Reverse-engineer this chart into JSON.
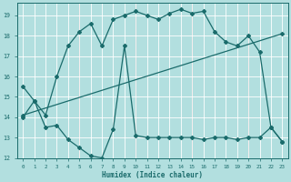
{
  "xlabel": "Humidex (Indice chaleur)",
  "bg_color": "#b2dfdf",
  "grid_color": "#c8e8e8",
  "grid_major_color": "#d4a0a0",
  "line_color": "#1a6b6b",
  "xlim": [
    -0.5,
    23.5
  ],
  "ylim": [
    12,
    19.6
  ],
  "yticks": [
    12,
    13,
    14,
    15,
    16,
    17,
    18,
    19
  ],
  "xticks": [
    0,
    1,
    2,
    3,
    4,
    5,
    6,
    7,
    8,
    9,
    10,
    11,
    12,
    13,
    14,
    15,
    16,
    17,
    18,
    19,
    20,
    21,
    22,
    23
  ],
  "line1_x": [
    0,
    1,
    2,
    3,
    4,
    5,
    6,
    7,
    8,
    9,
    10,
    11,
    12,
    13,
    14,
    15,
    16,
    17,
    18,
    19,
    20,
    21,
    22,
    23
  ],
  "line1_y": [
    15.5,
    14.8,
    14.1,
    16.0,
    17.5,
    18.2,
    18.6,
    17.5,
    18.8,
    19.0,
    19.2,
    19.0,
    18.8,
    19.1,
    19.3,
    19.1,
    19.2,
    18.2,
    17.7,
    17.5,
    18.0,
    17.2,
    13.5,
    12.8
  ],
  "line2_x": [
    0,
    1,
    2,
    3,
    4,
    5,
    6,
    7,
    8,
    9,
    10,
    11,
    12,
    13,
    14,
    15,
    16,
    17,
    18,
    19,
    20,
    21,
    22,
    23
  ],
  "line2_y": [
    14.0,
    14.8,
    13.5,
    13.6,
    12.9,
    12.5,
    12.1,
    12.0,
    13.4,
    17.5,
    13.1,
    13.0,
    13.0,
    13.0,
    13.0,
    13.0,
    12.9,
    13.0,
    13.0,
    12.9,
    13.0,
    13.0,
    13.5,
    12.8
  ],
  "line3_x": [
    0,
    23
  ],
  "line3_y": [
    14.1,
    18.1
  ]
}
